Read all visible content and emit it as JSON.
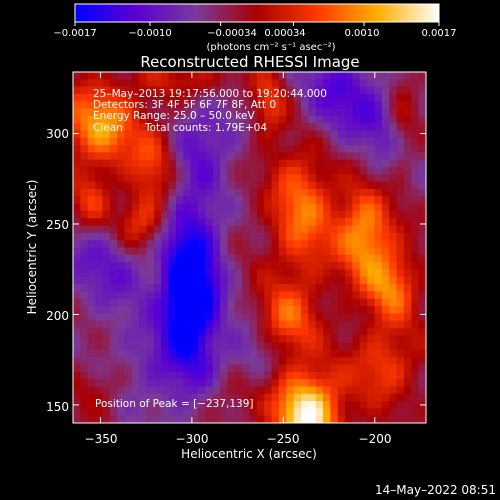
{
  "chart_data": {
    "type": "heatmap",
    "title": "Reconstructed RHESSI Image",
    "xlabel": "Heliocentric X (arcsec)",
    "ylabel": "Heliocentric Y (arcsec)",
    "xlim": [
      -365,
      -172
    ],
    "ylim": [
      140,
      334
    ],
    "x_ticks": [
      -350,
      -300,
      -250,
      -200
    ],
    "x_tick_labels": [
      "−350",
      "−300",
      "−250",
      "−200"
    ],
    "y_ticks": [
      150,
      200,
      250,
      300
    ],
    "y_tick_labels": [
      "150",
      "200",
      "250",
      "300"
    ],
    "colorbar": {
      "range": [
        -0.0017,
        0.0017
      ],
      "ticks": [
        -0.0017,
        -0.001,
        -0.00034,
        0.00034,
        0.001,
        0.0017
      ],
      "tick_labels": [
        "−0.0017",
        "−0.0010",
        "−0.00034",
        "0.00034",
        "0.0010",
        "0.0017"
      ],
      "unit_label": "(photons cm⁻² s⁻¹ asec⁻²)",
      "colors": [
        "#0000ff",
        "#5a00d2",
        "#7a3a9a",
        "#a80000",
        "#ff3a00",
        "#ffb000",
        "#ffffff"
      ]
    },
    "annotations": {
      "time_range": "25–May–2013 19:17:56.000 to 19:20:44.000",
      "detectors": "Detectors: 3F 4F 5F 6F 7F 8F, Att 0",
      "energy_range": "Energy Range: 25.0 – 50.0 keV",
      "method": "Clean",
      "total_counts": "Total counts: 1.79E+04",
      "peak": "Position of Peak = [−237,139]"
    },
    "peak_position": [
      -237,
      139
    ],
    "intensity_blobs": [
      {
        "x": -300,
        "y": 220,
        "amp": -1.0,
        "sx": 12,
        "sy": 40
      },
      {
        "x": -302,
        "y": 205,
        "amp": -0.6,
        "sx": 8,
        "sy": 15
      },
      {
        "x": -345,
        "y": 230,
        "amp": -0.5,
        "sx": 20,
        "sy": 20
      },
      {
        "x": -325,
        "y": 170,
        "amp": -0.35,
        "sx": 20,
        "sy": 20
      },
      {
        "x": -220,
        "y": 320,
        "amp": -0.6,
        "sx": 18,
        "sy": 20
      },
      {
        "x": -190,
        "y": 295,
        "amp": -0.45,
        "sx": 12,
        "sy": 25
      },
      {
        "x": -290,
        "y": 300,
        "amp": -0.4,
        "sx": 15,
        "sy": 15
      },
      {
        "x": -265,
        "y": 180,
        "amp": -0.4,
        "sx": 12,
        "sy": 15
      },
      {
        "x": -237,
        "y": 145,
        "amp": 1.35,
        "sx": 13,
        "sy": 17
      },
      {
        "x": -250,
        "y": 195,
        "amp": 0.7,
        "sx": 12,
        "sy": 14
      },
      {
        "x": -240,
        "y": 258,
        "amp": 0.75,
        "sx": 12,
        "sy": 28
      },
      {
        "x": -205,
        "y": 245,
        "amp": 0.95,
        "sx": 11,
        "sy": 20
      },
      {
        "x": -190,
        "y": 215,
        "amp": 0.7,
        "sx": 10,
        "sy": 14
      },
      {
        "x": -195,
        "y": 172,
        "amp": 0.55,
        "sx": 13,
        "sy": 15
      },
      {
        "x": -185,
        "y": 305,
        "amp": 0.5,
        "sx": 7,
        "sy": 25
      },
      {
        "x": -350,
        "y": 305,
        "amp": 0.9,
        "sx": 15,
        "sy": 16
      },
      {
        "x": -320,
        "y": 285,
        "amp": 0.55,
        "sx": 9,
        "sy": 15
      },
      {
        "x": -328,
        "y": 250,
        "amp": 0.75,
        "sx": 10,
        "sy": 12
      },
      {
        "x": -355,
        "y": 262,
        "amp": 0.55,
        "sx": 8,
        "sy": 12
      },
      {
        "x": -300,
        "y": 330,
        "amp": 0.35,
        "sx": 20,
        "sy": 8
      },
      {
        "x": -258,
        "y": 315,
        "amp": 0.6,
        "sx": 7,
        "sy": 12
      },
      {
        "x": -350,
        "y": 160,
        "amp": 0.3,
        "sx": 12,
        "sy": 10
      },
      {
        "x": -278,
        "y": 155,
        "amp": 0.25,
        "sx": 10,
        "sy": 10
      }
    ]
  },
  "footer": {
    "timestamp": "14–May–2022 08:51"
  }
}
